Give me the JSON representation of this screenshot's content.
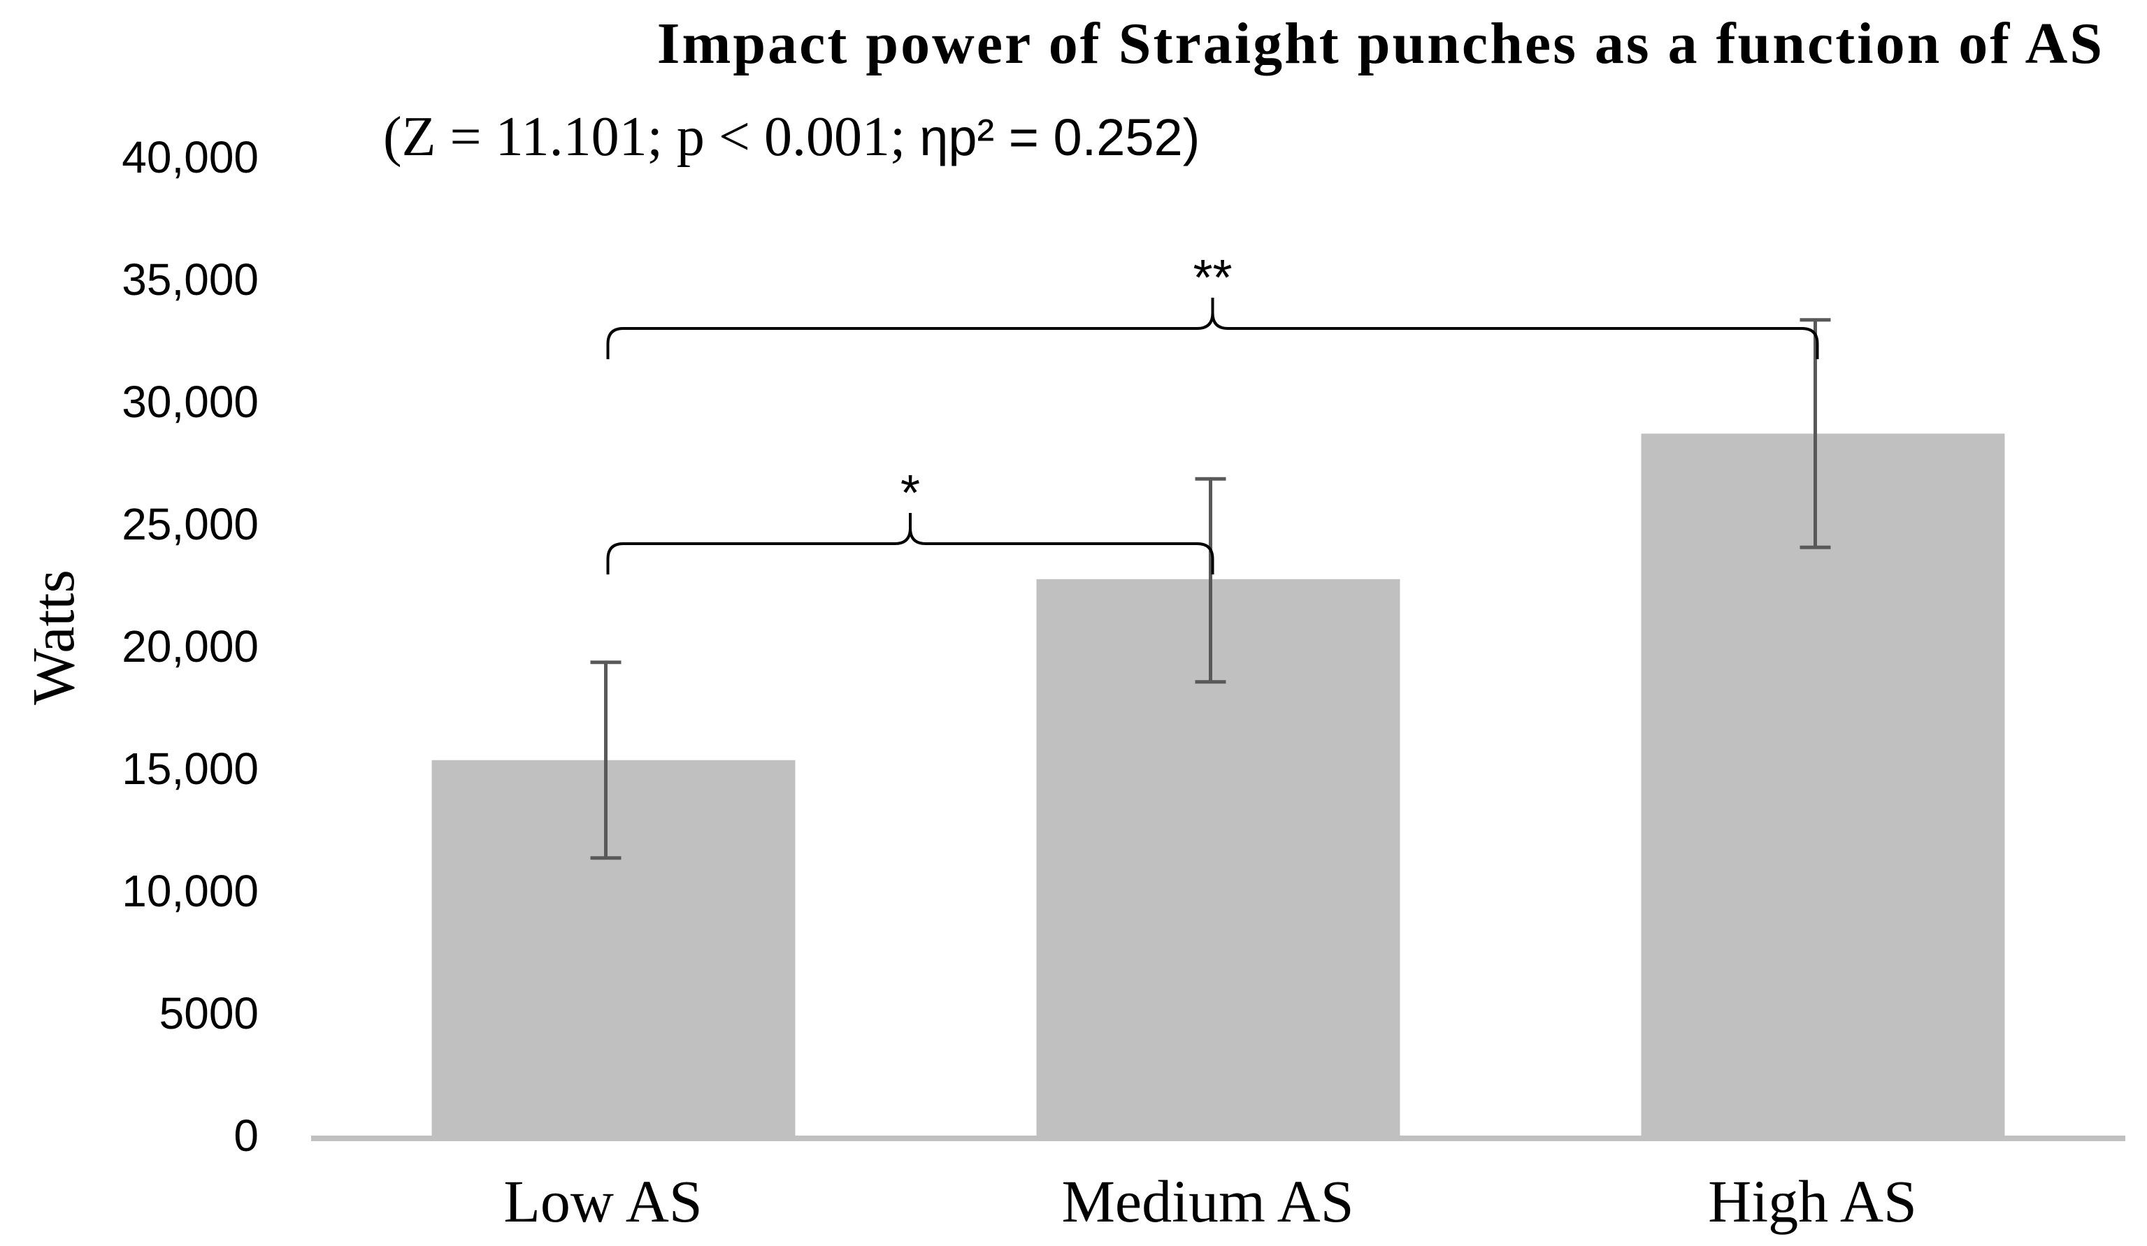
{
  "chart_data": {
    "type": "bar",
    "title": "Impact power of Straight punches as a function of AS",
    "subtitle": {
      "prefix": "(Z = 11.101; p < 0.001; ",
      "suffix": "ηp² = 0.252)"
    },
    "xlabel": "",
    "ylabel": "Watts",
    "categories": [
      "Low AS",
      "Medium AS",
      "High AS"
    ],
    "values": [
      15350,
      22750,
      28700
    ],
    "error_bars": [
      {
        "low": 11350,
        "high": 19350
      },
      {
        "low": 18550,
        "high": 26850
      },
      {
        "low": 24050,
        "high": 33350
      }
    ],
    "ylim": [
      0,
      40000
    ],
    "yticks": [
      0,
      5000,
      10000,
      15000,
      20000,
      25000,
      30000,
      35000,
      40000
    ],
    "ytick_labels": [
      "0",
      "5000",
      "10,000",
      "15,000",
      "20,000",
      "25,000",
      "30,000",
      "35,000",
      "40,000"
    ],
    "grid": false,
    "bar_color": "#c0c0c0",
    "error_color": "#595959",
    "significance": [
      {
        "from": 0,
        "to": 1,
        "label": "*",
        "y": 24200
      },
      {
        "from": 0,
        "to": 2,
        "label": "**",
        "y": 33000
      }
    ]
  }
}
